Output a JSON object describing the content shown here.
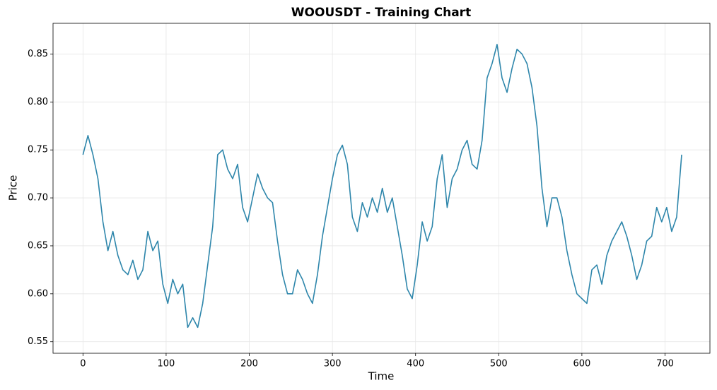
{
  "chart_data": {
    "type": "line",
    "title": "WOOUSDT - Training Chart",
    "x_label": "Time",
    "y_label": "Price",
    "x": [
      0,
      6,
      12,
      18,
      24,
      30,
      36,
      42,
      48,
      54,
      60,
      66,
      72,
      78,
      84,
      90,
      96,
      102,
      108,
      114,
      120,
      126,
      132,
      138,
      144,
      150,
      156,
      162,
      168,
      174,
      180,
      186,
      192,
      198,
      204,
      210,
      216,
      222,
      228,
      234,
      240,
      246,
      252,
      258,
      264,
      270,
      276,
      282,
      288,
      294,
      300,
      306,
      312,
      318,
      324,
      330,
      336,
      342,
      348,
      354,
      360,
      366,
      372,
      378,
      384,
      390,
      396,
      402,
      408,
      414,
      420,
      426,
      432,
      438,
      444,
      450,
      456,
      462,
      468,
      474,
      480,
      486,
      492,
      498,
      504,
      510,
      516,
      522,
      528,
      534,
      540,
      546,
      552,
      558,
      564,
      570,
      576,
      582,
      588,
      594,
      600,
      606,
      612,
      618,
      624,
      630,
      636,
      642,
      648,
      654,
      660,
      666,
      672,
      678,
      684,
      690,
      696,
      702,
      708,
      714,
      720
    ],
    "series": [
      {
        "name": "WOOUSDT",
        "color": "#2e86ab",
        "values": [
          0.745,
          0.765,
          0.745,
          0.72,
          0.675,
          0.645,
          0.665,
          0.64,
          0.625,
          0.62,
          0.635,
          0.615,
          0.625,
          0.665,
          0.645,
          0.655,
          0.61,
          0.59,
          0.615,
          0.6,
          0.61,
          0.565,
          0.575,
          0.565,
          0.59,
          0.63,
          0.67,
          0.745,
          0.75,
          0.73,
          0.72,
          0.735,
          0.69,
          0.675,
          0.7,
          0.725,
          0.71,
          0.7,
          0.695,
          0.655,
          0.62,
          0.6,
          0.6,
          0.625,
          0.615,
          0.6,
          0.59,
          0.62,
          0.66,
          0.69,
          0.72,
          0.745,
          0.755,
          0.735,
          0.68,
          0.665,
          0.695,
          0.68,
          0.7,
          0.685,
          0.71,
          0.685,
          0.7,
          0.67,
          0.64,
          0.605,
          0.595,
          0.63,
          0.675,
          0.655,
          0.67,
          0.72,
          0.745,
          0.69,
          0.72,
          0.73,
          0.75,
          0.76,
          0.735,
          0.73,
          0.76,
          0.825,
          0.84,
          0.86,
          0.825,
          0.81,
          0.835,
          0.855,
          0.85,
          0.84,
          0.815,
          0.775,
          0.71,
          0.67,
          0.7,
          0.7,
          0.68,
          0.645,
          0.62,
          0.6,
          0.595,
          0.59,
          0.625,
          0.63,
          0.61,
          0.64,
          0.655,
          0.665,
          0.675,
          0.66,
          0.64,
          0.615,
          0.63,
          0.655,
          0.66,
          0.69,
          0.675,
          0.69,
          0.665,
          0.68,
          0.745
        ]
      }
    ],
    "xlim": [
      -36,
      754
    ],
    "ylim": [
      0.538,
      0.882
    ],
    "xticks": [
      0,
      100,
      200,
      300,
      400,
      500,
      600,
      700
    ],
    "yticks": [
      0.55,
      {
        "value": 0.6,
        "label": "0.60"
      },
      0.65,
      {
        "value": 0.7,
        "label": "0.70"
      },
      0.75,
      {
        "value": 0.8,
        "label": "0.80"
      },
      0.85
    ],
    "grid": true
  }
}
